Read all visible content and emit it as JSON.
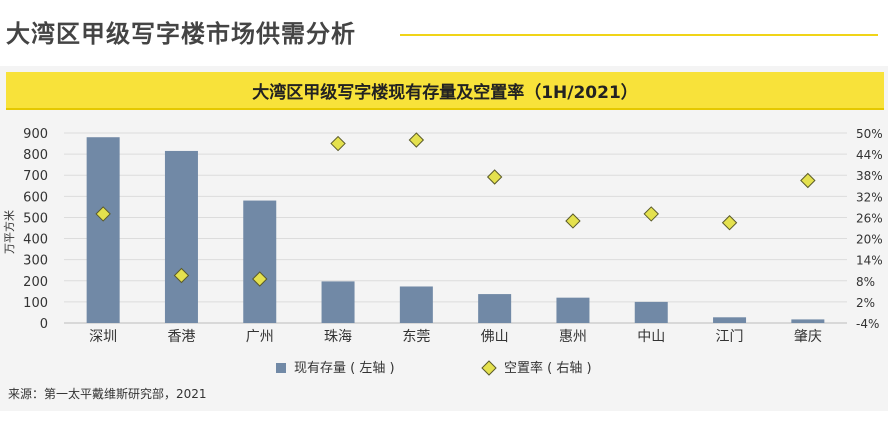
{
  "page": {
    "heading": "大湾区甲级写字楼市场供需分析",
    "chart_title": "大湾区甲级写字楼现有存量及空置率（1H/2021）",
    "source": "来源：第一太平戴维斯研究部，2021"
  },
  "colors": {
    "bar": "#7189a6",
    "marker_fill": "#e4e14e",
    "marker_stroke": "#5a5a2a",
    "banner": "#f8e23a",
    "accent_rule": "#f0d418",
    "panel_bg": "#f4f4f4"
  },
  "chart_data": {
    "type": "bar",
    "title": "大湾区甲级写字楼现有存量及空置率（1H/2021）",
    "categories": [
      "深圳",
      "香港",
      "广州",
      "珠海",
      "东莞",
      "佛山",
      "惠州",
      "中山",
      "江门",
      "肇庆"
    ],
    "series": [
      {
        "name": "现有存量 ( 左轴 )",
        "type": "bar",
        "axis": "left",
        "values": [
          880,
          815,
          580,
          197,
          173,
          137,
          120,
          100,
          27,
          17
        ]
      },
      {
        "name": "空置率 ( 右轴 )",
        "type": "scatter",
        "axis": "right",
        "marker": "diamond",
        "values": [
          27.0,
          9.5,
          8.5,
          47.0,
          48.0,
          37.5,
          25.0,
          27.0,
          24.5,
          36.5
        ]
      }
    ],
    "ylabel": "万平方米",
    "ylim": [
      0,
      900
    ],
    "y_ticks": [
      "900",
      "800",
      "700",
      "600",
      "500",
      "400",
      "300",
      "200",
      "100",
      "0"
    ],
    "y2lim": [
      -4,
      50
    ],
    "y2_ticks": [
      "50%",
      "44%",
      "38%",
      "32%",
      "26%",
      "20%",
      "14%",
      "8%",
      "2%",
      "-4%"
    ],
    "grid": true,
    "legend_position": "bottom"
  }
}
